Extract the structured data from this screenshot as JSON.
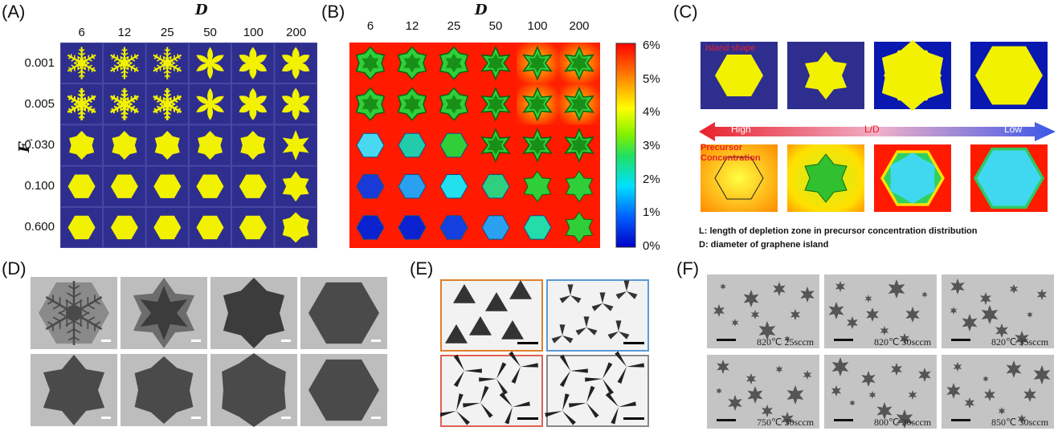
{
  "panels": {
    "A": {
      "label": "(A)",
      "x_title": "D",
      "y_title": "F",
      "y_title_sub": "↓",
      "cols": [
        "6",
        "12",
        "25",
        "50",
        "100",
        "200"
      ],
      "rows": [
        "0.001",
        "0.005",
        "0.030",
        "0.100",
        "0.600"
      ]
    },
    "B": {
      "label": "(B)",
      "x_title": "D",
      "cols": [
        "6",
        "12",
        "25",
        "50",
        "100",
        "200"
      ],
      "colorbar_ticks": [
        "6%",
        "5%",
        "4%",
        "3%",
        "2%",
        "1%",
        "0%"
      ]
    },
    "C": {
      "label": "(C)",
      "shape_label": "Island shape",
      "arrow_left": "High",
      "arrow_mid": "L/D",
      "arrow_right": "Low",
      "conc_label_1": "Precursor",
      "conc_label_2": "Concentration",
      "note_L": "L: length of depletion zone in precursor concentration distribution",
      "note_D": "D: diameter of graphene island"
    },
    "D": {
      "label": "(D)"
    },
    "E": {
      "label": "(E)"
    },
    "F": {
      "label": "(F)",
      "captions": [
        "820℃ 25sccm",
        "820℃ 30sccm",
        "820℃ 35sccm",
        "750℃ 30sccm",
        "800℃ 30sccm",
        "850℃ 30sccm"
      ]
    }
  },
  "colors": {
    "sim_bg": "#2e2e8f",
    "island": "#f2f200",
    "field_high": "#ff1a00",
    "island_green": "#22cc22",
    "island_cyan": "#22ddee",
    "island_blue": "#1a3ad8",
    "arrow_red": "#e8202a",
    "arrow_blue": "#3a56e8",
    "red_text": "#e8202a"
  }
}
